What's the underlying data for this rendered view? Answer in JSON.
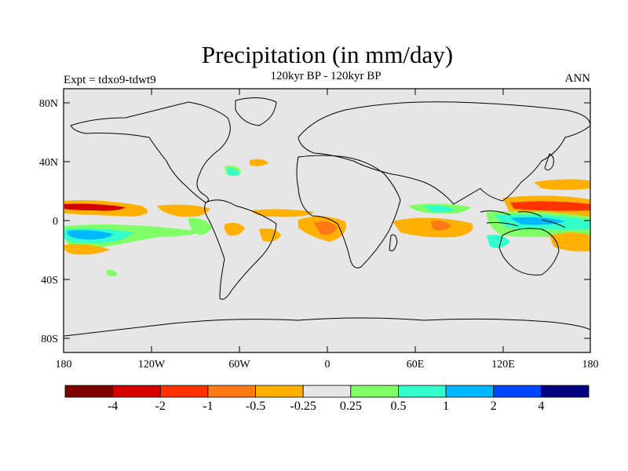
{
  "header": {
    "title": "Precipitation (in mm/day)",
    "subtitle": "120kyr BP - 120kyr BP",
    "left_label": "Expt = tdxo9-tdwt9",
    "right_label": "ANN"
  },
  "axes": {
    "x_ticks": [
      "180",
      "120W",
      "60W",
      "0",
      "60E",
      "120E",
      "180"
    ],
    "y_ticks": [
      "80N",
      "40N",
      "0",
      "40S",
      "80S"
    ]
  },
  "colorbar": {
    "colors": [
      "#800000",
      "#d40000",
      "#ff3300",
      "#ff7a14",
      "#ffb000",
      "#e6e6e6",
      "#80ff66",
      "#33ffcc",
      "#00b8ff",
      "#0047ff",
      "#000080"
    ],
    "labels": [
      "-4",
      "-2",
      "-1",
      "-0.5",
      "-0.25",
      "0.25",
      "0.5",
      "1",
      "2",
      "4"
    ]
  },
  "map_style": {
    "background": "#e6e6e6",
    "coastline": "#000000"
  }
}
